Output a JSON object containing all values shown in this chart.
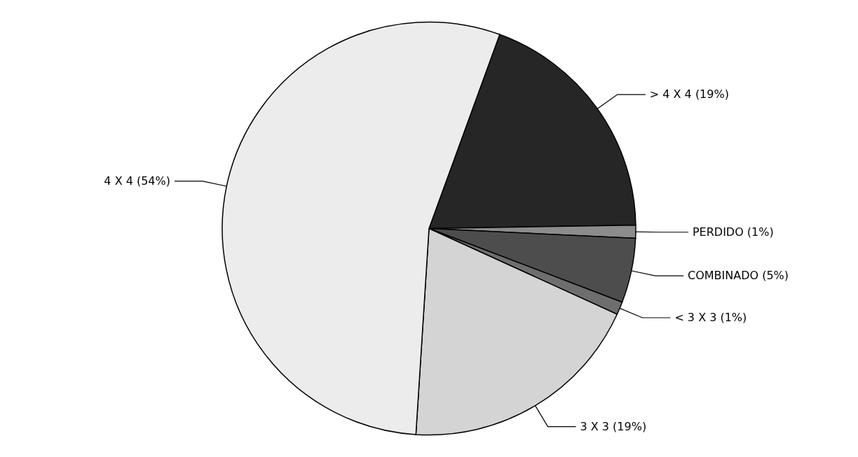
{
  "chart_data": {
    "type": "pie",
    "categories": [
      "> 4 X 4",
      "PERDIDO",
      "COMBINADO",
      "< 3 X 3",
      "3 X 3",
      "4 X 4"
    ],
    "values": [
      19,
      1,
      5,
      1,
      19,
      54
    ],
    "value_labels": [
      "(19%)",
      "(1%)",
      "(5%)",
      "(1%)",
      "(19%)",
      "(54%)"
    ],
    "colors": [
      "#262626",
      "#8c8c8c",
      "#4d4d4d",
      "#6e6e6e",
      "#d4d4d4",
      "#ececec"
    ],
    "legend": false
  }
}
